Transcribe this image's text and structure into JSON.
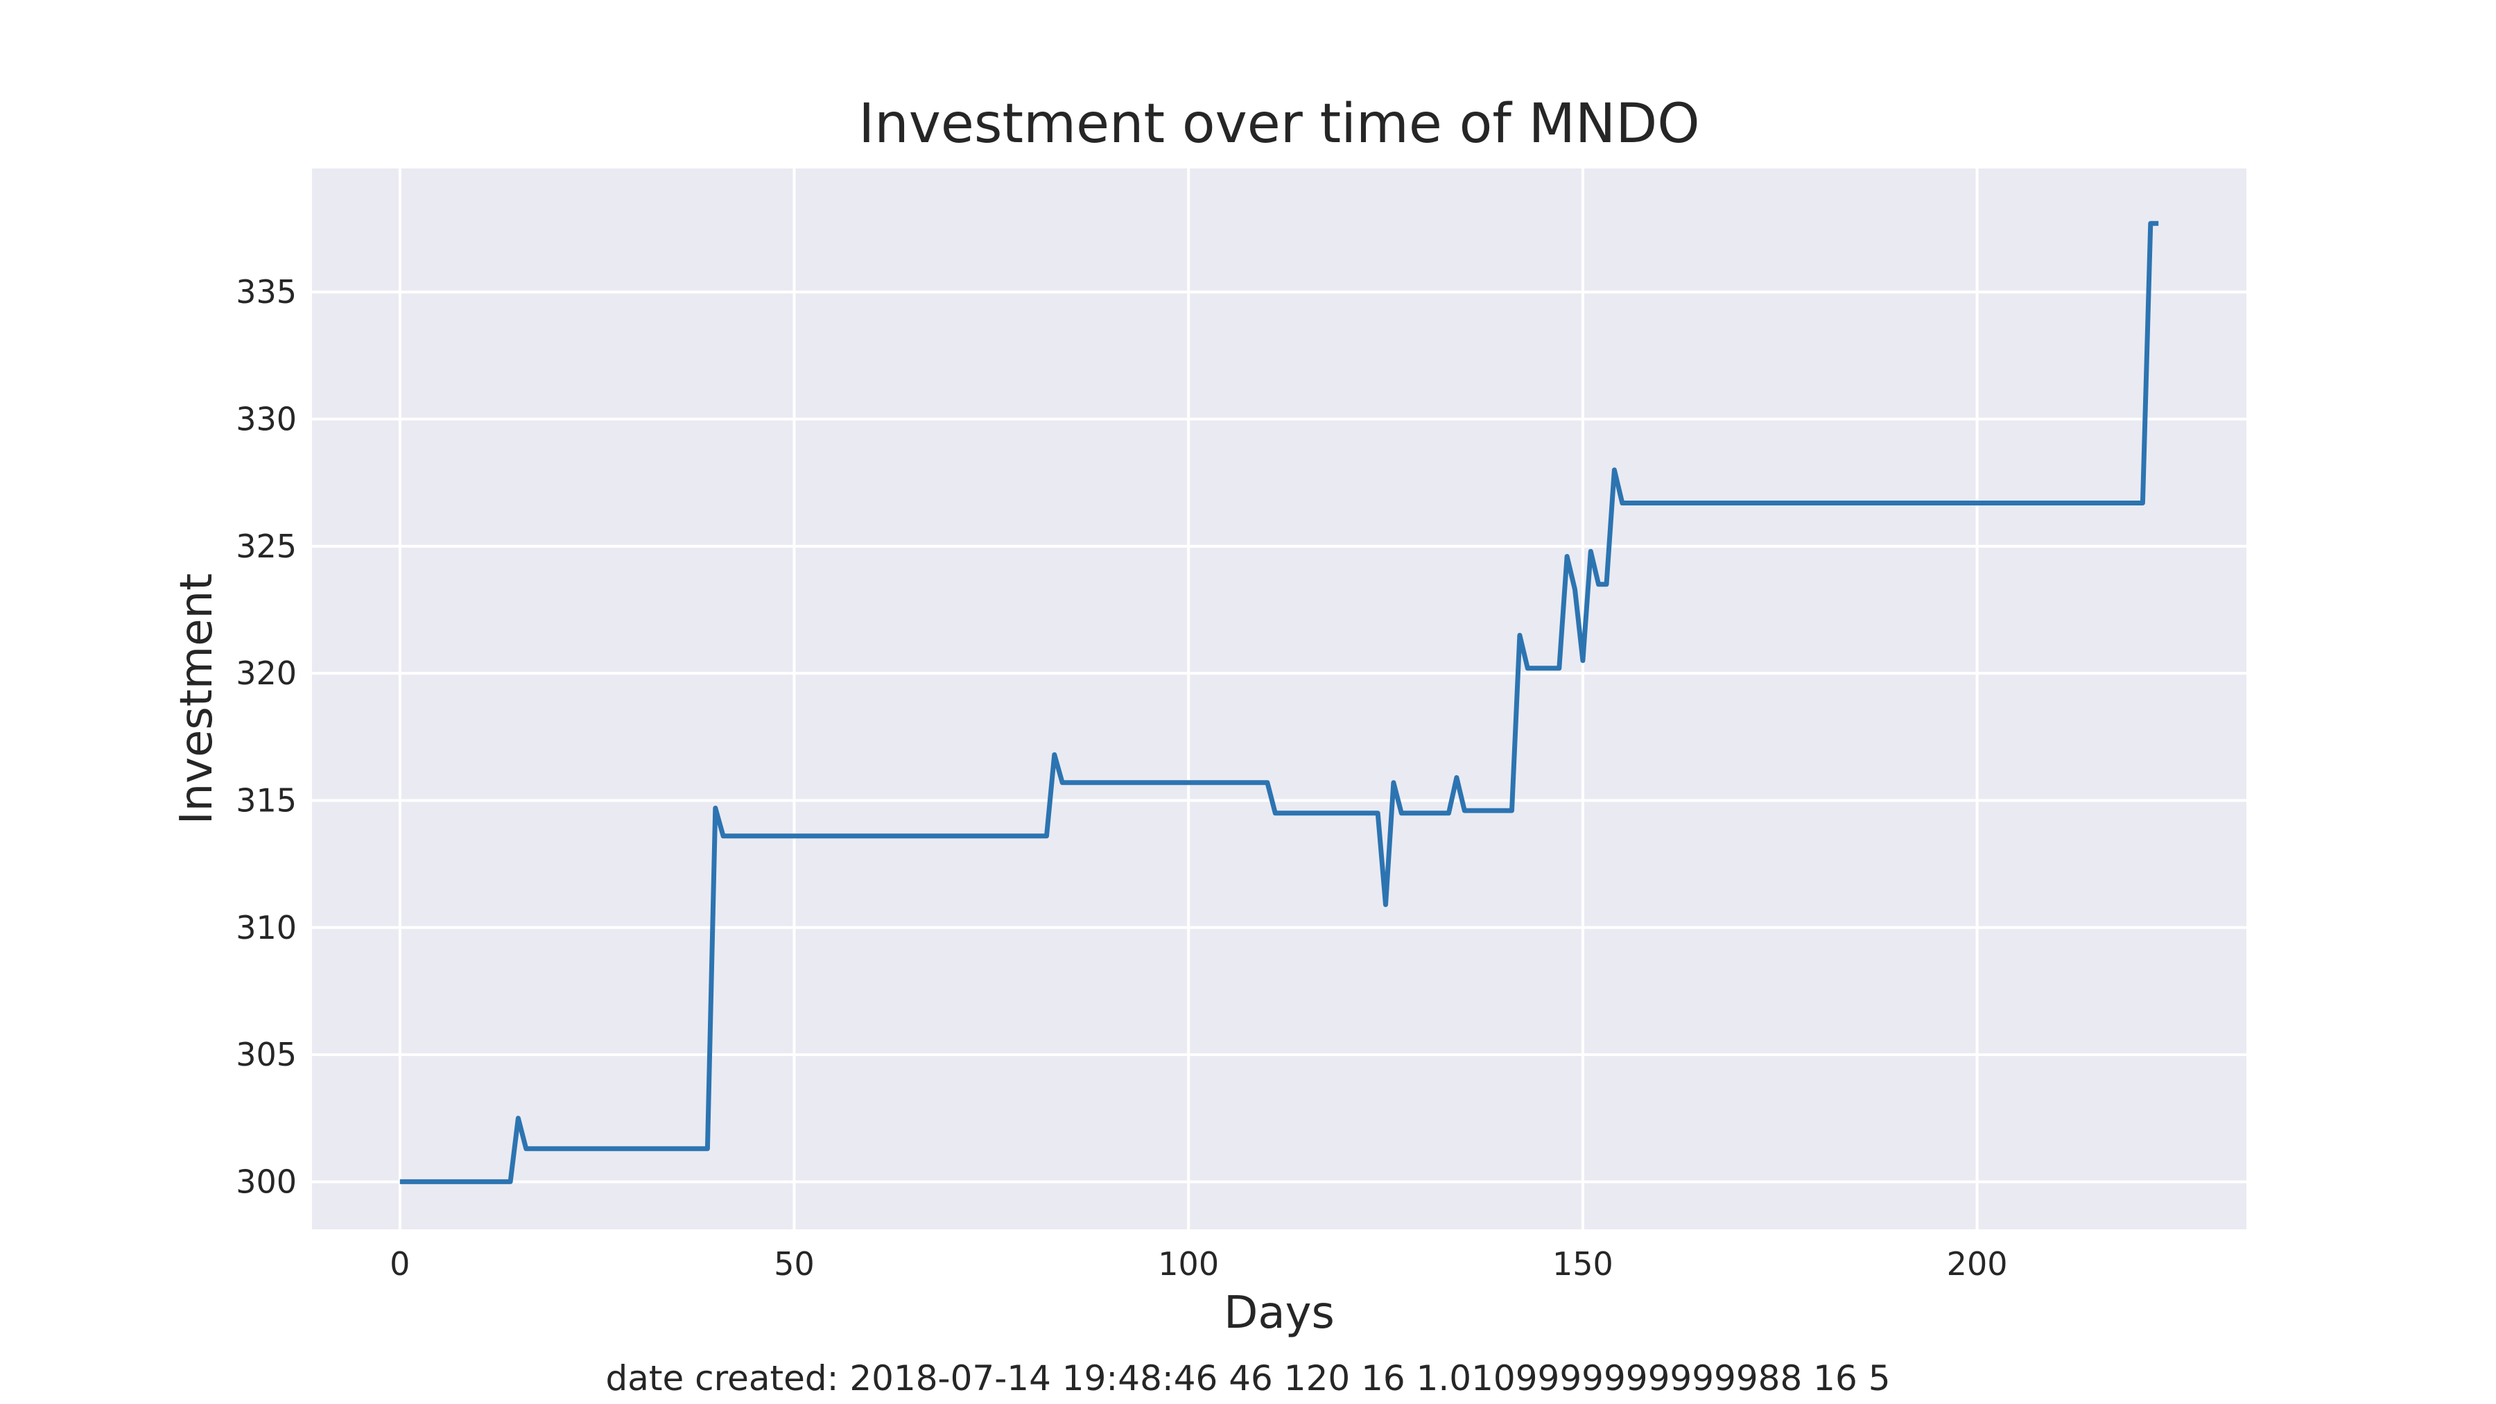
{
  "chart_data": {
    "type": "line",
    "title": "Investment over time of MNDO",
    "xlabel": "Days",
    "ylabel": "Investment",
    "xlim": [
      -11.15,
      234.15
    ],
    "ylim": [
      298.13,
      339.86
    ],
    "xticks": [
      0,
      50,
      100,
      150,
      200
    ],
    "yticks": [
      300,
      305,
      310,
      315,
      320,
      325,
      330,
      335
    ],
    "xtick_labels": [
      "0",
      "50",
      "100",
      "150",
      "200"
    ],
    "ytick_labels": [
      "300",
      "305",
      "310",
      "315",
      "320",
      "325",
      "330",
      "335"
    ],
    "grid": true,
    "background": "#eaeaf2",
    "grid_color": "#ffffff",
    "line_color": "#2c74b1",
    "series": [
      {
        "x": [
          0,
          14,
          15,
          16,
          39,
          40,
          41,
          82,
          83,
          84,
          110,
          111,
          112,
          124,
          125,
          126,
          127,
          133,
          134,
          135,
          141,
          142,
          143,
          147,
          148,
          149,
          150,
          151,
          152,
          153,
          154,
          155,
          221,
          222,
          223
        ],
        "y": [
          300.0,
          300.0,
          302.5,
          301.3,
          301.3,
          314.7,
          313.6,
          313.6,
          316.8,
          315.7,
          315.7,
          314.5,
          314.5,
          314.5,
          310.9,
          315.7,
          314.5,
          314.5,
          315.9,
          314.6,
          314.6,
          321.5,
          320.2,
          320.2,
          324.6,
          323.3,
          320.5,
          324.8,
          323.5,
          323.5,
          328.0,
          326.7,
          326.7,
          337.7,
          337.7
        ]
      }
    ]
  },
  "footer": {
    "text": "date created: 2018-07-14 19:48:46 46 120 16 1.0109999999999988 16 5"
  }
}
